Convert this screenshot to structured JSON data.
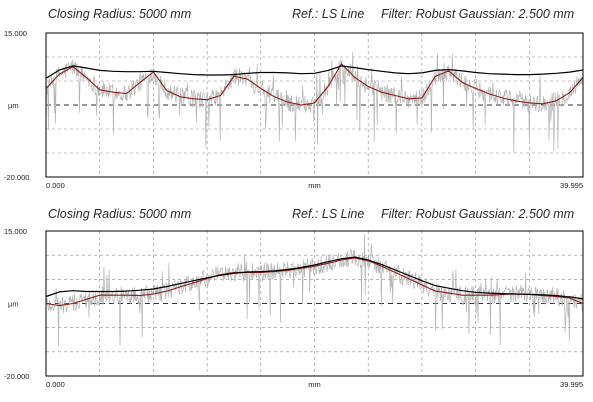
{
  "chart_data": [
    {
      "type": "line",
      "header": {
        "closing_radius": "Closing Radius: 5000 mm",
        "reference": "Ref.: LS Line",
        "filter": "Filter: Robust Gaussian: 2.500 mm"
      },
      "ylabel": "µm",
      "xlabel": "mm",
      "ylim": [
        -20,
        15
      ],
      "xlim": [
        0,
        39.995
      ],
      "y_ticks": [
        "15.000",
        "-20.000"
      ],
      "x_ticks": [
        "0.000",
        "39.995"
      ],
      "grid": true,
      "colors": {
        "raw": "#b4b4b4",
        "filtered": "#8a1f1f",
        "envelope": "#000000",
        "grid": "#8a8a8a"
      },
      "series": [
        {
          "x": [
            0,
            1,
            2,
            3,
            4,
            5,
            6,
            7,
            8,
            9,
            10,
            11,
            12,
            13,
            14,
            15,
            16,
            17,
            18,
            19,
            20,
            21,
            22,
            23,
            24,
            25,
            26,
            27,
            28,
            29,
            30,
            31,
            32,
            33,
            34,
            35,
            36,
            37,
            38,
            39,
            40
          ],
          "values": [
            1.5,
            5,
            6.8,
            4.2,
            1.2,
            0.6,
            0.3,
            3,
            5.5,
            1,
            -0.5,
            -1,
            -1.2,
            -0.2,
            4.5,
            3.8,
            1.5,
            -0.5,
            -1.8,
            -2.5,
            -2,
            2,
            7.5,
            4.2,
            2,
            0.6,
            -0.2,
            -1,
            -0.8,
            4.5,
            5.8,
            3,
            1.5,
            0.2,
            -0.8,
            -1.5,
            -2,
            -2.2,
            -1.5,
            0.5,
            4.2
          ]
        },
        {
          "x": [
            0,
            1,
            2,
            3,
            4,
            5,
            6,
            7,
            8,
            9,
            10,
            11,
            12,
            13,
            14,
            15,
            16,
            17,
            18,
            19,
            20,
            21,
            22,
            23,
            24,
            25,
            26,
            27,
            28,
            29,
            30,
            31,
            32,
            33,
            34,
            35,
            36,
            37,
            38,
            39,
            40
          ],
          "values": [
            4,
            6,
            7,
            6.5,
            5.9,
            5.7,
            5.6,
            5.6,
            5.7,
            5.4,
            5.1,
            4.9,
            4.8,
            4.8,
            4.9,
            5.2,
            5.4,
            5.4,
            5.3,
            5.1,
            5.2,
            5.9,
            7,
            6.6,
            6.1,
            5.7,
            5.3,
            5.1,
            5.3,
            5.9,
            6.1,
            5.8,
            5.4,
            5.1,
            5,
            4.9,
            4.9,
            5,
            5.2,
            5.5,
            6
          ]
        }
      ]
    },
    {
      "type": "line",
      "header": {
        "closing_radius": "Closing Radius: 5000 mm",
        "reference": "Ref.: LS Line",
        "filter": "Filter: Robust Gaussian: 2.500 mm"
      },
      "ylabel": "µm",
      "xlabel": "mm",
      "ylim": [
        -20,
        15
      ],
      "xlim": [
        0,
        39.995
      ],
      "y_ticks": [
        "15.000",
        "-20.000"
      ],
      "x_ticks": [
        "0.000",
        "39.995"
      ],
      "grid": true,
      "colors": {
        "raw": "#b4b4b4",
        "filtered": "#8a1f1f",
        "envelope": "#000000",
        "grid": "#8a8a8a"
      },
      "series": [
        {
          "x": [
            0,
            1,
            2,
            3,
            4,
            5,
            6,
            7,
            8,
            9,
            10,
            11,
            12,
            13,
            14,
            15,
            16,
            17,
            18,
            19,
            20,
            21,
            22,
            23,
            24,
            25,
            26,
            27,
            28,
            29,
            30,
            31,
            32,
            33,
            34,
            35,
            36,
            37,
            38,
            39,
            40
          ],
          "values": [
            -2.5,
            -3,
            -2.5,
            -1.5,
            -0.5,
            -0.5,
            -0.5,
            -0.6,
            -0.2,
            0.5,
            1.5,
            2.5,
            3.5,
            4.5,
            5,
            5,
            5,
            5.2,
            5.5,
            6,
            6.5,
            7.2,
            8,
            8.5,
            7.8,
            6.5,
            5,
            3.5,
            2,
            0.5,
            0,
            -0.5,
            -0.5,
            -0.5,
            -0.3,
            -0.2,
            -0.3,
            -0.6,
            -0.8,
            -1.2,
            -2.5
          ]
        },
        {
          "x": [
            0,
            1,
            2,
            3,
            4,
            5,
            6,
            7,
            8,
            9,
            10,
            11,
            12,
            13,
            14,
            15,
            16,
            17,
            18,
            19,
            20,
            21,
            22,
            23,
            24,
            25,
            26,
            27,
            28,
            29,
            30,
            31,
            32,
            33,
            34,
            35,
            36,
            37,
            38,
            39,
            40
          ],
          "values": [
            -0.8,
            0.3,
            0.6,
            0.4,
            0.4,
            0.4,
            0.5,
            0.7,
            1,
            1.6,
            2.3,
            3,
            3.7,
            4.3,
            4.8,
            5.1,
            5.2,
            5.4,
            5.7,
            6.2,
            6.8,
            7.6,
            8.3,
            8.7,
            8,
            6.9,
            5.6,
            4.3,
            3,
            1.8,
            1.2,
            0.6,
            0.2,
            0,
            -0.1,
            -0.2,
            -0.3,
            -0.4,
            -0.6,
            -0.9,
            -1.4
          ]
        }
      ]
    }
  ]
}
